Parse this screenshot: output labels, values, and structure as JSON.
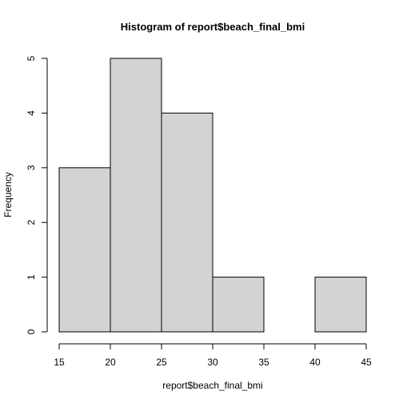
{
  "chart_data": {
    "type": "bar",
    "title": "Histogram of report$beach_final_bmi",
    "xlabel": "report$beach_final_bmi",
    "ylabel": "Frequency",
    "bins": [
      {
        "from": 15,
        "to": 20,
        "count": 3
      },
      {
        "from": 20,
        "to": 25,
        "count": 5
      },
      {
        "from": 25,
        "to": 30,
        "count": 4
      },
      {
        "from": 30,
        "to": 35,
        "count": 1
      },
      {
        "from": 35,
        "to": 40,
        "count": 0
      },
      {
        "from": 40,
        "to": 45,
        "count": 1
      }
    ],
    "xlim": [
      15,
      45
    ],
    "ylim": [
      0,
      5
    ],
    "x_ticks": [
      15,
      20,
      25,
      30,
      35,
      40,
      45
    ],
    "y_ticks": [
      0,
      1,
      2,
      3,
      4,
      5
    ],
    "grid": false,
    "bar_color": "#d3d3d3",
    "edge_color": "#000000"
  }
}
